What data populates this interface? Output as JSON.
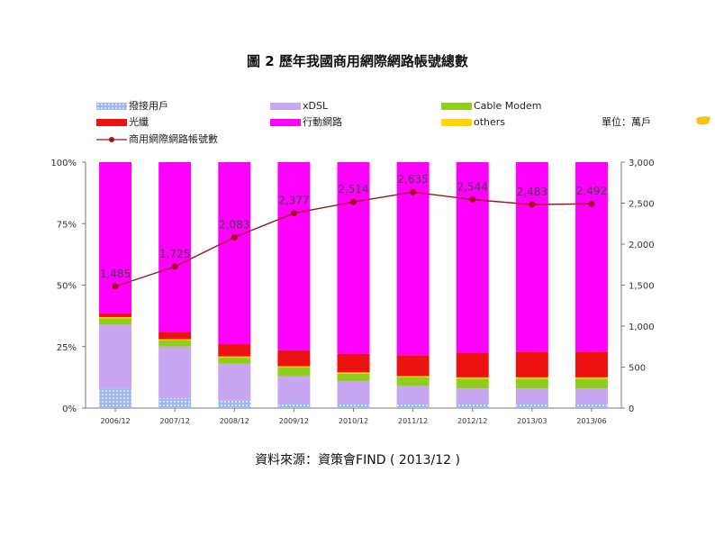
{
  "chart_data": {
    "type": "bar",
    "title": "圖 2 歷年我國商用網際網路帳號總數",
    "unit_label": "單位：萬戶",
    "source": "資料來源：資策會FIND ( 2013/12 )",
    "categories": [
      "2006/12",
      "2007/12",
      "2008/12",
      "2009/12",
      "2010/12",
      "2011/12",
      "2012/12",
      "2013/03",
      "2013/06"
    ],
    "left_axis": {
      "ylim": [
        0,
        100
      ],
      "ticks": [
        "0%",
        "25%",
        "50%",
        "75%",
        "100%"
      ]
    },
    "right_axis": {
      "ylim": [
        0,
        3000
      ],
      "ticks": [
        "0",
        "500",
        "1,000",
        "1,500",
        "2,000",
        "2,500",
        "3,000"
      ]
    },
    "series": [
      {
        "name": "撥接用戶",
        "color": "#9fb8ec",
        "pattern": true,
        "values": [
          8,
          4,
          3,
          2,
          2,
          2,
          2,
          2,
          2
        ]
      },
      {
        "name": "xDSL",
        "color": "#c8a6f2",
        "values": [
          26,
          21,
          15,
          11,
          9,
          7,
          6,
          6,
          6
        ]
      },
      {
        "name": "Cable Modem",
        "color": "#8fce1a",
        "values": [
          2.5,
          2.5,
          2.5,
          3.5,
          3,
          3.5,
          4,
          4,
          4
        ]
      },
      {
        "name": "others",
        "color": "#ffd400",
        "values": [
          0.5,
          0.5,
          0.5,
          0.5,
          0.5,
          0.5,
          0.5,
          0.5,
          0.5
        ]
      },
      {
        "name": "光纖",
        "color": "#ee1111",
        "values": [
          1.5,
          3,
          5,
          6.5,
          7.5,
          8.5,
          10,
          10.5,
          10.5
        ]
      },
      {
        "name": "行動網路",
        "color": "#ff00ff",
        "values": [
          61.5,
          69,
          74,
          76.5,
          78,
          78.5,
          77.5,
          77,
          77
        ]
      }
    ],
    "line_series": {
      "name": "商用網際網路帳號數",
      "color": "#a0101a",
      "values": [
        1485,
        1725,
        2083,
        2377,
        2514,
        2635,
        2544,
        2483,
        2492
      ],
      "labels": [
        "1,485",
        "1,725",
        "2,083",
        "2,377",
        "2,514",
        "2,635",
        "2,544",
        "2,483",
        "2,492"
      ]
    }
  }
}
